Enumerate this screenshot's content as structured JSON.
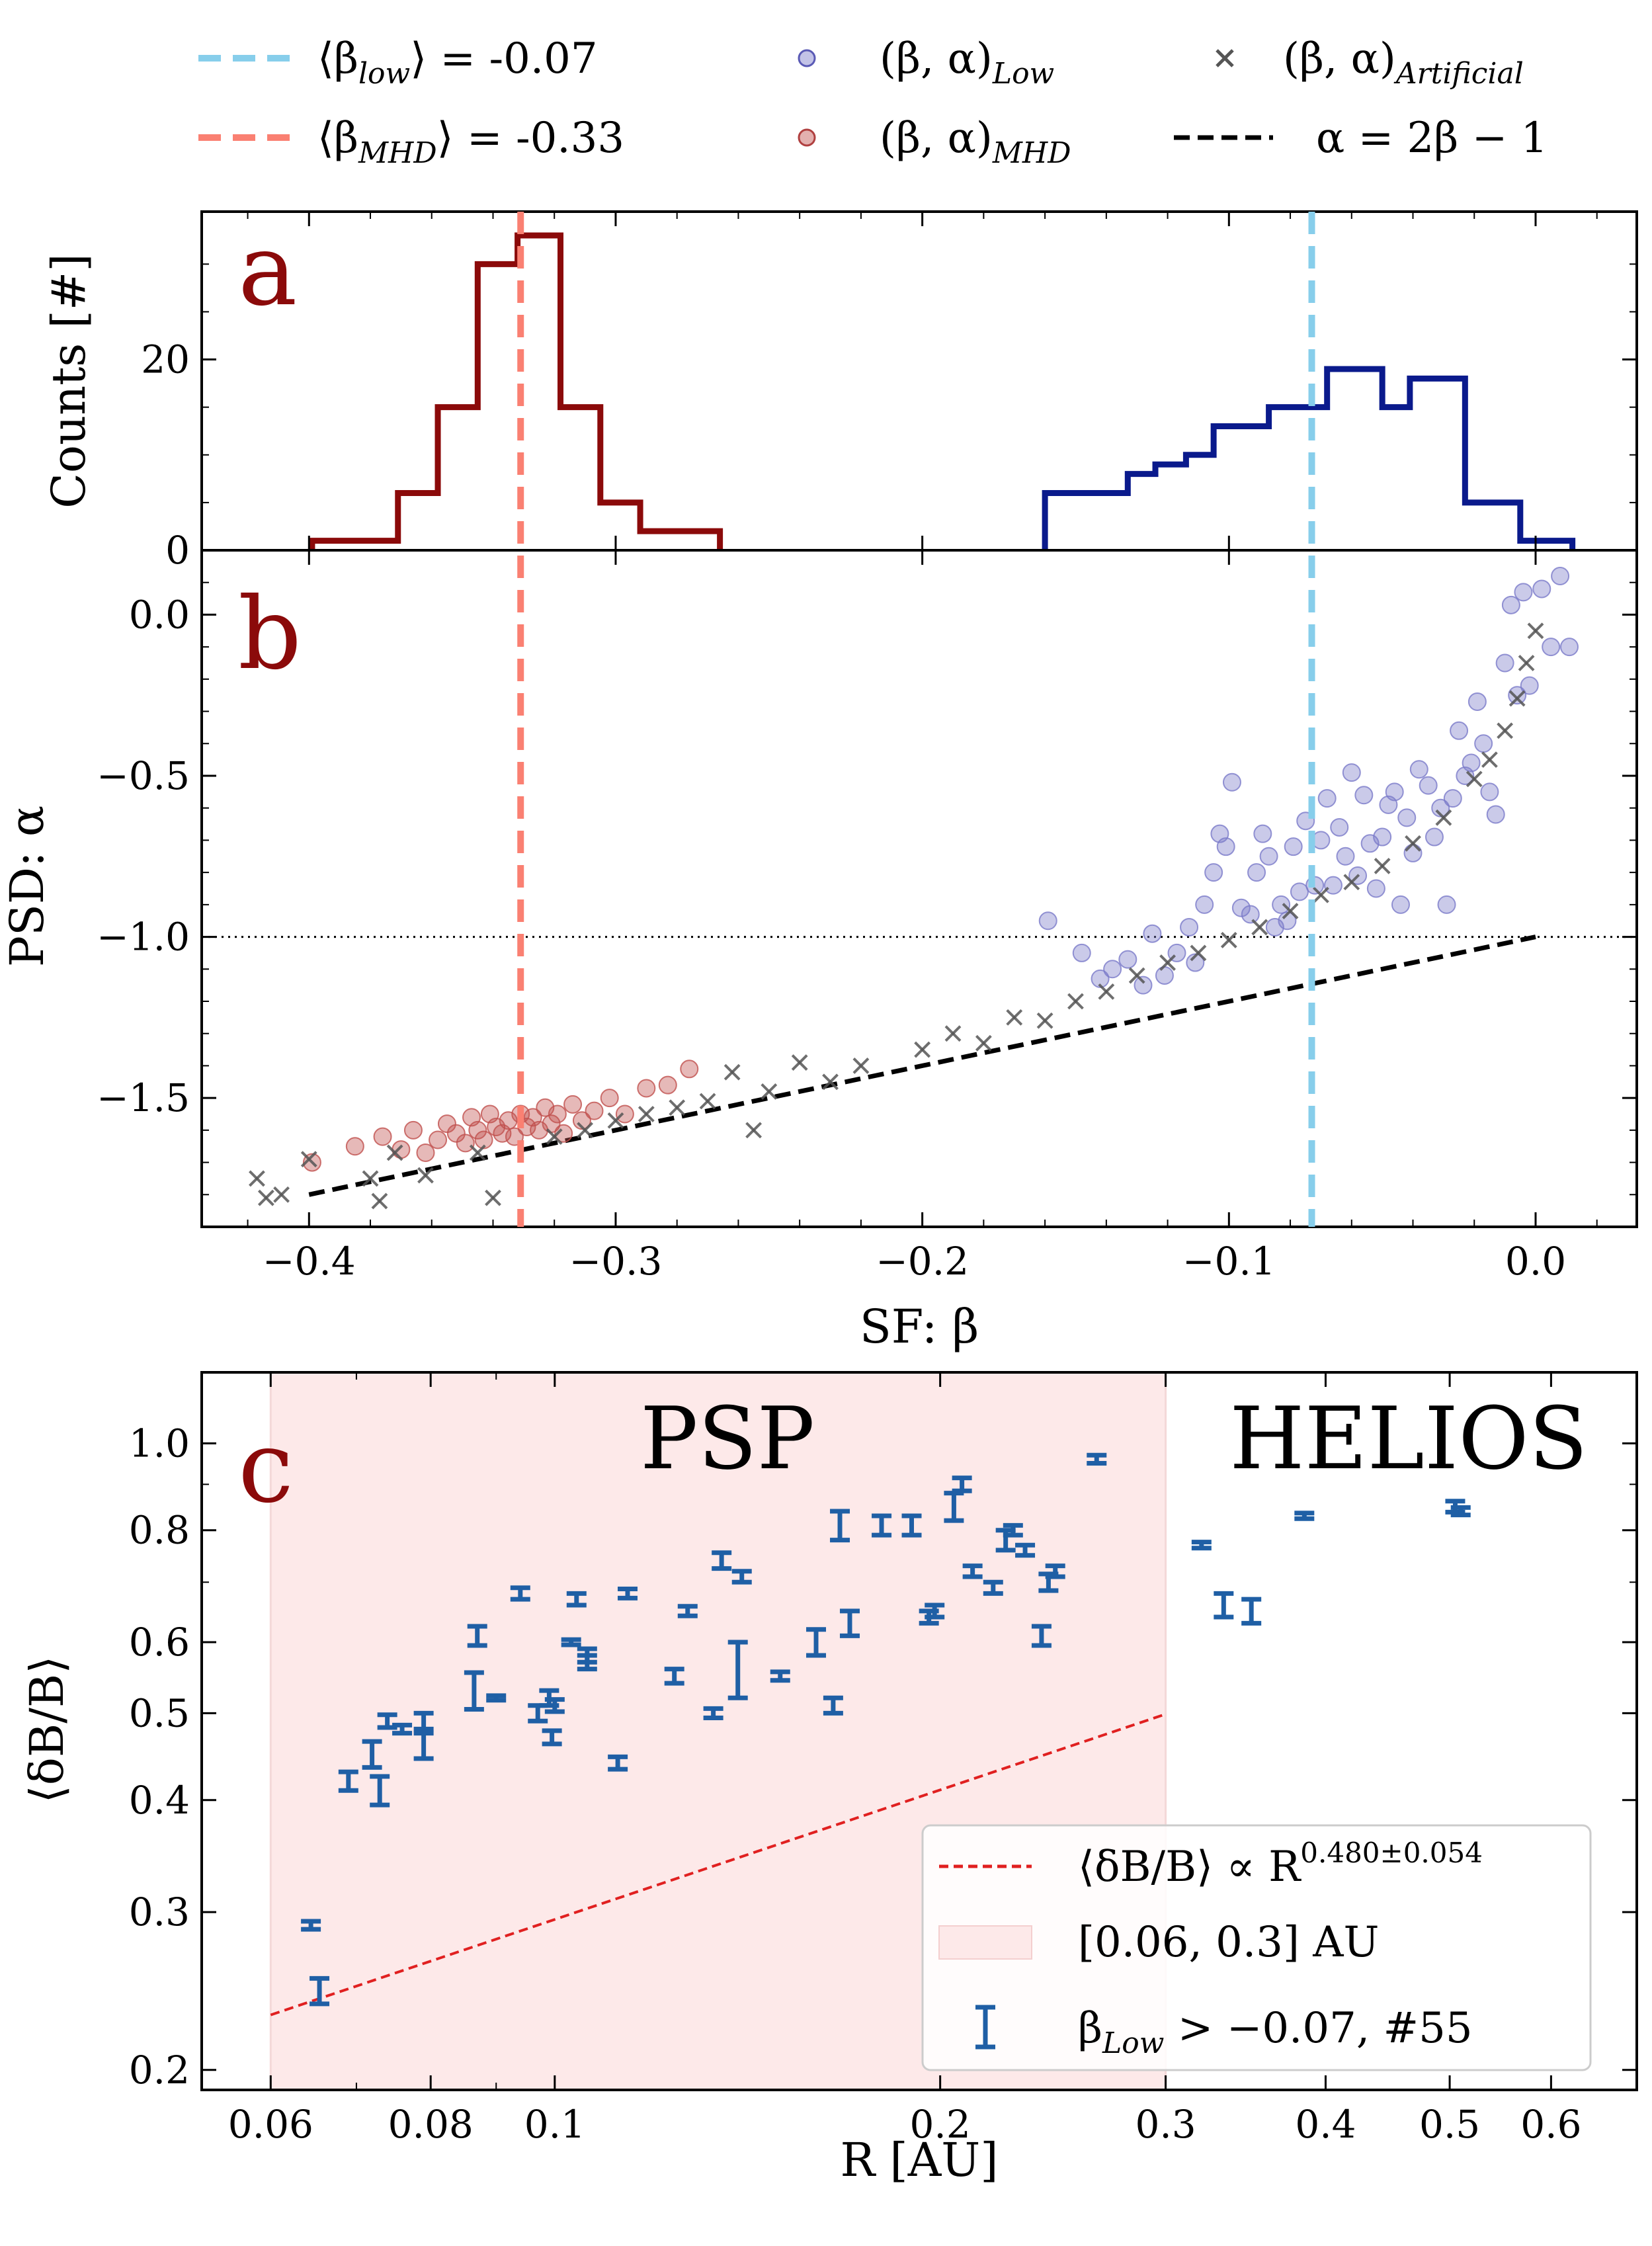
{
  "chart_data": [
    {
      "id": "a",
      "type": "histogram",
      "panel_label": "a",
      "ylabel": "Counts [#]",
      "xlim": [
        -0.435,
        0.033
      ],
      "ylim": [
        0,
        35.5
      ],
      "yticks": [
        0,
        20
      ],
      "series": [
        {
          "name": "MHD",
          "color": "#8b0a0a",
          "edges": [
            -0.399,
            -0.384,
            -0.371,
            -0.358,
            -0.345,
            -0.332,
            -0.318,
            -0.305,
            -0.292,
            -0.279,
            -0.266
          ],
          "counts": [
            1,
            1,
            6,
            15,
            30,
            33,
            15,
            5,
            2,
            2
          ]
        },
        {
          "name": "Low",
          "color": "#0a1a8c",
          "edges": [
            -0.16,
            -0.142,
            -0.133,
            -0.124,
            -0.114,
            -0.105,
            -0.096,
            -0.087,
            -0.077,
            -0.068,
            -0.059,
            -0.05,
            -0.041,
            -0.031,
            -0.023,
            -0.014,
            -0.005,
            0.012
          ],
          "counts": [
            6,
            6,
            8,
            9,
            10,
            13,
            13,
            15,
            15,
            19,
            19,
            15,
            18,
            18,
            5,
            5,
            1
          ]
        }
      ]
    },
    {
      "id": "b",
      "type": "scatter",
      "panel_label": "b",
      "xlabel": "SF: β",
      "ylabel": "PSD: α",
      "xlim": [
        -0.435,
        0.033
      ],
      "ylim": [
        -1.9,
        0.2
      ],
      "xticks": [
        -0.4,
        -0.3,
        -0.2,
        -0.1,
        0.0
      ],
      "xtick_labels": [
        "−0.4",
        "−0.3",
        "−0.2",
        "−0.1",
        "0.0"
      ],
      "yticks": [
        0.0,
        -0.5,
        -1.0,
        -1.5
      ],
      "ytick_labels": [
        "0.0",
        "−0.5",
        "−1.0",
        "−1.5"
      ],
      "reference_lines": {
        "vline_low": -0.073,
        "vline_mhd": -0.331,
        "hline": -1.0
      },
      "series": [
        {
          "name": "(β, α)_Low",
          "marker": "circle",
          "color": "#7b7bc9",
          "points": [
            [
              -0.159,
              -0.95
            ],
            [
              -0.148,
              -1.05
            ],
            [
              -0.142,
              -1.13
            ],
            [
              -0.138,
              -1.1
            ],
            [
              -0.133,
              -1.07
            ],
            [
              -0.128,
              -1.15
            ],
            [
              -0.125,
              -0.99
            ],
            [
              -0.121,
              -1.12
            ],
            [
              -0.117,
              -1.05
            ],
            [
              -0.113,
              -0.97
            ],
            [
              -0.111,
              -1.08
            ],
            [
              -0.108,
              -0.9
            ],
            [
              -0.105,
              -0.8
            ],
            [
              -0.103,
              -0.68
            ],
            [
              -0.101,
              -0.72
            ],
            [
              -0.099,
              -0.52
            ],
            [
              -0.096,
              -0.91
            ],
            [
              -0.093,
              -0.93
            ],
            [
              -0.091,
              -0.8
            ],
            [
              -0.089,
              -0.68
            ],
            [
              -0.087,
              -0.75
            ],
            [
              -0.085,
              -0.97
            ],
            [
              -0.083,
              -0.9
            ],
            [
              -0.081,
              -0.95
            ],
            [
              -0.079,
              -0.72
            ],
            [
              -0.077,
              -0.86
            ],
            [
              -0.075,
              -0.64
            ],
            [
              -0.072,
              -0.84
            ],
            [
              -0.07,
              -0.7
            ],
            [
              -0.068,
              -0.57
            ],
            [
              -0.066,
              -0.84
            ],
            [
              -0.064,
              -0.66
            ],
            [
              -0.062,
              -0.75
            ],
            [
              -0.06,
              -0.49
            ],
            [
              -0.058,
              -0.81
            ],
            [
              -0.056,
              -0.56
            ],
            [
              -0.054,
              -0.71
            ],
            [
              -0.052,
              -0.85
            ],
            [
              -0.05,
              -0.69
            ],
            [
              -0.048,
              -0.59
            ],
            [
              -0.046,
              -0.55
            ],
            [
              -0.044,
              -0.9
            ],
            [
              -0.042,
              -0.63
            ],
            [
              -0.04,
              -0.74
            ],
            [
              -0.038,
              -0.48
            ],
            [
              -0.035,
              -0.53
            ],
            [
              -0.033,
              -0.69
            ],
            [
              -0.031,
              -0.6
            ],
            [
              -0.029,
              -0.9
            ],
            [
              -0.027,
              -0.57
            ],
            [
              -0.025,
              -0.36
            ],
            [
              -0.023,
              -0.5
            ],
            [
              -0.021,
              -0.46
            ],
            [
              -0.019,
              -0.27
            ],
            [
              -0.017,
              -0.4
            ],
            [
              -0.015,
              -0.55
            ],
            [
              -0.013,
              -0.62
            ],
            [
              -0.01,
              -0.15
            ],
            [
              -0.008,
              0.03
            ],
            [
              -0.006,
              -0.25
            ],
            [
              -0.004,
              0.07
            ],
            [
              -0.002,
              -0.22
            ],
            [
              0.002,
              0.08
            ],
            [
              0.005,
              -0.1
            ],
            [
              0.008,
              0.12
            ],
            [
              0.011,
              -0.1
            ]
          ]
        },
        {
          "name": "(β, α)_MHD",
          "marker": "circle",
          "color": "#c0504d",
          "points": [
            [
              -0.399,
              -1.7
            ],
            [
              -0.385,
              -1.65
            ],
            [
              -0.376,
              -1.62
            ],
            [
              -0.37,
              -1.66
            ],
            [
              -0.366,
              -1.6
            ],
            [
              -0.362,
              -1.67
            ],
            [
              -0.358,
              -1.63
            ],
            [
              -0.355,
              -1.58
            ],
            [
              -0.352,
              -1.61
            ],
            [
              -0.349,
              -1.64
            ],
            [
              -0.347,
              -1.56
            ],
            [
              -0.345,
              -1.6
            ],
            [
              -0.343,
              -1.63
            ],
            [
              -0.341,
              -1.55
            ],
            [
              -0.339,
              -1.59
            ],
            [
              -0.337,
              -1.61
            ],
            [
              -0.335,
              -1.57
            ],
            [
              -0.333,
              -1.62
            ],
            [
              -0.331,
              -1.55
            ],
            [
              -0.329,
              -1.59
            ],
            [
              -0.327,
              -1.56
            ],
            [
              -0.325,
              -1.6
            ],
            [
              -0.323,
              -1.53
            ],
            [
              -0.321,
              -1.58
            ],
            [
              -0.319,
              -1.55
            ],
            [
              -0.317,
              -1.61
            ],
            [
              -0.314,
              -1.52
            ],
            [
              -0.311,
              -1.57
            ],
            [
              -0.307,
              -1.54
            ],
            [
              -0.302,
              -1.5
            ],
            [
              -0.297,
              -1.55
            ],
            [
              -0.29,
              -1.47
            ],
            [
              -0.283,
              -1.46
            ],
            [
              -0.276,
              -1.41
            ]
          ]
        },
        {
          "name": "(β, α)_Artificial",
          "marker": "x",
          "color": "#555555",
          "points": [
            [
              -0.417,
              -1.75
            ],
            [
              -0.414,
              -1.81
            ],
            [
              -0.409,
              -1.8
            ],
            [
              -0.4,
              -1.69
            ],
            [
              -0.38,
              -1.75
            ],
            [
              -0.377,
              -1.82
            ],
            [
              -0.372,
              -1.67
            ],
            [
              -0.362,
              -1.74
            ],
            [
              -0.345,
              -1.67
            ],
            [
              -0.34,
              -1.81
            ],
            [
              -0.32,
              -1.62
            ],
            [
              -0.31,
              -1.6
            ],
            [
              -0.3,
              -1.57
            ],
            [
              -0.29,
              -1.55
            ],
            [
              -0.28,
              -1.53
            ],
            [
              -0.27,
              -1.51
            ],
            [
              -0.262,
              -1.42
            ],
            [
              -0.255,
              -1.6
            ],
            [
              -0.25,
              -1.48
            ],
            [
              -0.24,
              -1.39
            ],
            [
              -0.23,
              -1.45
            ],
            [
              -0.22,
              -1.4
            ],
            [
              -0.2,
              -1.35
            ],
            [
              -0.19,
              -1.3
            ],
            [
              -0.18,
              -1.33
            ],
            [
              -0.17,
              -1.25
            ],
            [
              -0.16,
              -1.26
            ],
            [
              -0.15,
              -1.2
            ],
            [
              -0.14,
              -1.17
            ],
            [
              -0.13,
              -1.12
            ],
            [
              -0.12,
              -1.08
            ],
            [
              -0.11,
              -1.05
            ],
            [
              -0.1,
              -1.01
            ],
            [
              -0.09,
              -0.97
            ],
            [
              -0.08,
              -0.92
            ],
            [
              -0.07,
              -0.87
            ],
            [
              -0.06,
              -0.83
            ],
            [
              -0.05,
              -0.78
            ],
            [
              -0.04,
              -0.71
            ],
            [
              -0.03,
              -0.63
            ],
            [
              -0.02,
              -0.51
            ],
            [
              -0.015,
              -0.45
            ],
            [
              -0.01,
              -0.36
            ],
            [
              -0.006,
              -0.26
            ],
            [
              -0.003,
              -0.15
            ],
            [
              0.0,
              -0.05
            ]
          ]
        }
      ],
      "model_line": {
        "name": "α = 2β − 1",
        "x": [
          -0.4,
          0.0
        ],
        "y": [
          -1.8,
          -1.0
        ]
      }
    },
    {
      "id": "c",
      "type": "errorbar",
      "panel_label": "c",
      "xlabel": "R [AU]",
      "ylabel": "⟨δB/B⟩",
      "xscale": "log",
      "yscale": "log",
      "xlim": [
        0.053,
        0.7
      ],
      "ylim": [
        0.19,
        1.2
      ],
      "xticks": [
        0.06,
        0.08,
        0.1,
        0.2,
        0.3,
        0.4,
        0.5,
        0.6
      ],
      "xtick_labels": [
        "0.06",
        "0.08",
        "0.1",
        "0.2",
        "0.3",
        "0.4",
        "0.5",
        "0.6"
      ],
      "yticks": [
        0.2,
        0.3,
        0.4,
        0.5,
        0.6,
        0.8,
        1.0
      ],
      "ytick_labels": [
        "0.2",
        "0.3",
        "0.4",
        "0.5",
        "0.6",
        "0.8",
        "1.0"
      ],
      "region": {
        "range": [
          0.06,
          0.3
        ],
        "label": "PSP",
        "outside_label": "HELIOS"
      },
      "fit": {
        "a": 0.889,
        "exponent": 0.48,
        "range": [
          0.06,
          0.3
        ]
      },
      "points": [
        [
          0.0645,
          0.29,
          0.003
        ],
        [
          0.0655,
          0.245,
          0.008
        ],
        [
          0.069,
          0.42,
          0.01
        ],
        [
          0.072,
          0.45,
          0.015
        ],
        [
          0.073,
          0.41,
          0.015
        ],
        [
          0.074,
          0.49,
          0.008
        ],
        [
          0.076,
          0.48,
          0.005
        ],
        [
          0.079,
          0.46,
          0.015
        ],
        [
          0.079,
          0.49,
          0.01
        ],
        [
          0.0865,
          0.53,
          0.025
        ],
        [
          0.087,
          0.61,
          0.015
        ],
        [
          0.09,
          0.52,
          0.003
        ],
        [
          0.094,
          0.68,
          0.01
        ],
        [
          0.097,
          0.5,
          0.01
        ],
        [
          0.099,
          0.52,
          0.01
        ],
        [
          0.0995,
          0.47,
          0.008
        ],
        [
          0.1,
          0.51,
          0.008
        ],
        [
          0.103,
          0.6,
          0.004
        ],
        [
          0.104,
          0.67,
          0.01
        ],
        [
          0.106,
          0.57,
          0.01
        ],
        [
          0.106,
          0.58,
          0.01
        ],
        [
          0.112,
          0.44,
          0.007
        ],
        [
          0.114,
          0.68,
          0.008
        ],
        [
          0.124,
          0.55,
          0.01
        ],
        [
          0.127,
          0.65,
          0.008
        ],
        [
          0.133,
          0.5,
          0.006
        ],
        [
          0.135,
          0.74,
          0.015
        ],
        [
          0.139,
          0.56,
          0.04
        ],
        [
          0.14,
          0.71,
          0.01
        ],
        [
          0.15,
          0.55,
          0.006
        ],
        [
          0.16,
          0.6,
          0.02
        ],
        [
          0.165,
          0.51,
          0.01
        ],
        [
          0.167,
          0.81,
          0.03
        ],
        [
          0.17,
          0.63,
          0.02
        ],
        [
          0.18,
          0.81,
          0.02
        ],
        [
          0.19,
          0.81,
          0.02
        ],
        [
          0.196,
          0.64,
          0.01
        ],
        [
          0.198,
          0.65,
          0.01
        ],
        [
          0.205,
          0.85,
          0.03
        ],
        [
          0.208,
          0.9,
          0.015
        ],
        [
          0.212,
          0.72,
          0.01
        ],
        [
          0.22,
          0.69,
          0.01
        ],
        [
          0.225,
          0.78,
          0.02
        ],
        [
          0.228,
          0.8,
          0.01
        ],
        [
          0.233,
          0.76,
          0.01
        ],
        [
          0.24,
          0.61,
          0.015
        ],
        [
          0.243,
          0.7,
          0.015
        ],
        [
          0.246,
          0.72,
          0.01
        ],
        [
          0.265,
          0.96,
          0.01
        ],
        [
          0.32,
          0.77,
          0.006
        ],
        [
          0.333,
          0.66,
          0.02
        ],
        [
          0.35,
          0.65,
          0.02
        ],
        [
          0.385,
          0.83,
          0.006
        ],
        [
          0.505,
          0.85,
          0.012
        ],
        [
          0.51,
          0.84,
          0.008
        ]
      ]
    }
  ],
  "legend_top": {
    "items": [
      {
        "label": "⟨β",
        "sub": "low",
        "tail": "⟩ = -0.07"
      },
      {
        "label": "(β, α)",
        "sub": "Low",
        "tail": ""
      },
      {
        "label": "(β, α)",
        "sub": "Artificial",
        "tail": ""
      },
      {
        "label": "⟨β",
        "sub": "MHD",
        "tail": "⟩ = -0.33"
      },
      {
        "label": "(β, α)",
        "sub": "MHD",
        "tail": ""
      },
      {
        "label": "α = 2β − 1",
        "sub": "",
        "tail": ""
      }
    ]
  },
  "legend_c": {
    "fit_label": "⟨δB/B⟩ ∝ R",
    "fit_exponent": "0.480±0.054",
    "region_label": "[0.06, 0.3] AU",
    "points_label_base": "β",
    "points_label_sub": "Low",
    "points_label_tail": " > −0.07, #55"
  },
  "colors": {
    "low_line": "#87ceeb",
    "mhd_line": "#fa8072",
    "hist_mhd": "#8b0a0a",
    "hist_low": "#0a1a8c",
    "scatter_low": "#7b7bc9",
    "scatter_mhd": "#c0504d",
    "artificial": "#555555",
    "errorbar": "#1f5fa5",
    "fit": "#e02020",
    "region": "#fde9e9",
    "panel_letter": "#8b0a0a"
  }
}
